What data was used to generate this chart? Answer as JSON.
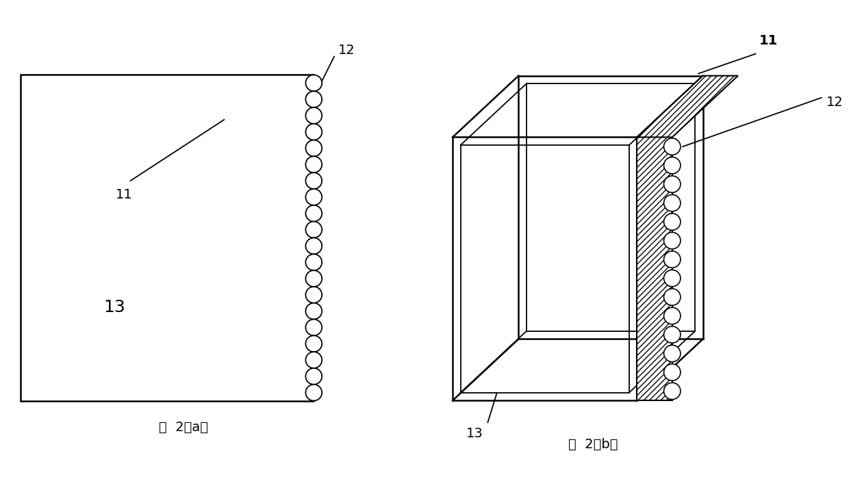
{
  "bg_color": "#ffffff",
  "line_color": "#000000",
  "fig_width": 12.4,
  "fig_height": 6.97,
  "label_11a": "11",
  "label_12a": "12",
  "label_13a": "13",
  "label_11b": "11",
  "label_12b": "12",
  "label_13b": "13",
  "caption_a": "图  2（a）",
  "caption_b": "图  2（b）",
  "num_circles_a": 20,
  "num_circles_b": 14
}
